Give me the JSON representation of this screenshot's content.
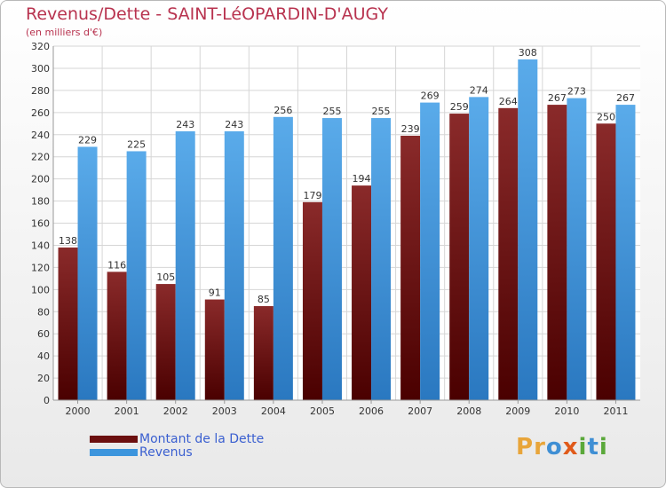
{
  "chart_data": {
    "type": "bar",
    "title": "Revenus/Dette - SAINT-LéOPARDIN-D'AUGY",
    "subtitle": "(en milliers d'€)",
    "categories": [
      "2000",
      "2001",
      "2002",
      "2003",
      "2004",
      "2005",
      "2006",
      "2007",
      "2008",
      "2009",
      "2010",
      "2011"
    ],
    "series": [
      {
        "name": "Montant de la Dette",
        "color": "#6b0f0f",
        "values": [
          138,
          116,
          105,
          91,
          85,
          179,
          194,
          239,
          259,
          264,
          267,
          250
        ]
      },
      {
        "name": "Revenus",
        "color": "#3c95dd",
        "values": [
          229,
          225,
          243,
          243,
          256,
          255,
          255,
          269,
          274,
          308,
          273,
          267
        ]
      }
    ],
    "ylim": [
      0,
      320
    ],
    "yticks": [
      0,
      20,
      40,
      60,
      80,
      100,
      120,
      140,
      160,
      180,
      200,
      220,
      240,
      260,
      280,
      300,
      320
    ],
    "grid": true,
    "legend_position": "bottom-left"
  },
  "logo": {
    "letters": [
      {
        "char": "P",
        "color": "#e8a53a"
      },
      {
        "char": "r",
        "color": "#e8a53a"
      },
      {
        "char": "o",
        "color": "#3f8fd4"
      },
      {
        "char": "x",
        "color": "#e05a1a"
      },
      {
        "char": "i",
        "color": "#5aa83a"
      },
      {
        "char": "t",
        "color": "#3f8fd4"
      },
      {
        "char": "i",
        "color": "#5aa83a"
      }
    ]
  }
}
